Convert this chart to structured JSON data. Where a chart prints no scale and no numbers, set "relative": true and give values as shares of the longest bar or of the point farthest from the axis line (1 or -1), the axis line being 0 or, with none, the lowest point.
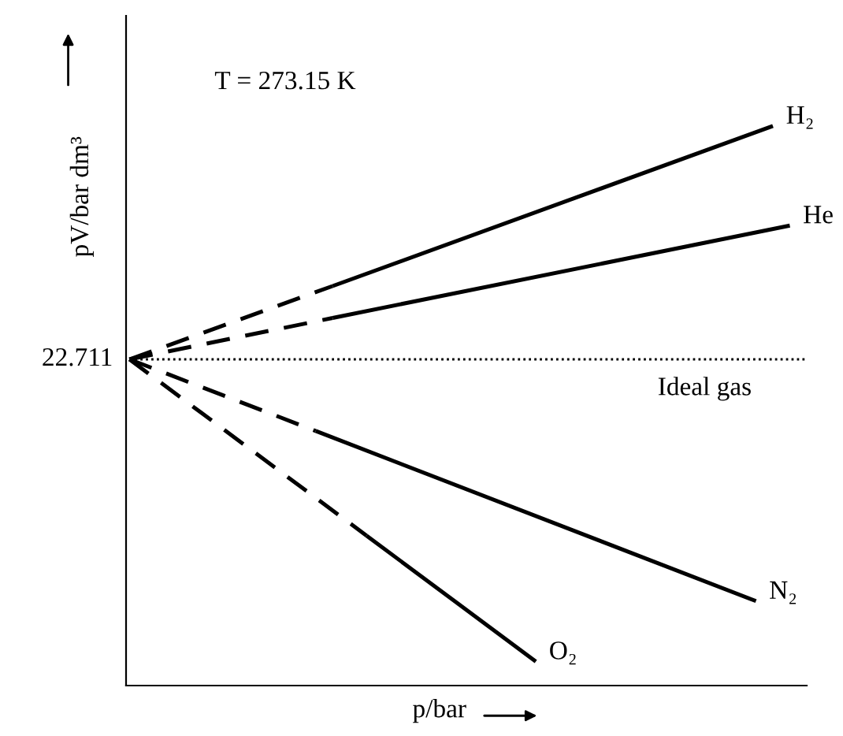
{
  "chart_data": {
    "type": "line",
    "relative": true,
    "xlabel": "p/bar",
    "ylabel": "pV/bar dm³",
    "annotations": [
      "T = 273.15 K",
      "22.711"
    ],
    "categories": [
      null,
      null,
      null,
      null,
      null,
      null,
      null,
      null,
      null,
      null,
      null,
      null,
      null,
      null,
      null,
      null,
      null,
      null,
      null,
      null,
      null,
      null,
      null,
      null,
      null,
      null,
      null,
      null,
      null,
      null,
      null,
      null,
      null,
      null,
      null,
      null,
      null,
      null,
      null,
      null,
      null
    ],
    "series": [
      {
        "name": "Ideal gas",
        "color": "#000000",
        "line_style": "dotted",
        "values": [
          0.583,
          null,
          null,
          null,
          null,
          null,
          null,
          null,
          null,
          null,
          null,
          null,
          null,
          null,
          null,
          null,
          null,
          null,
          null,
          null,
          null,
          null,
          null,
          null,
          null,
          null,
          null,
          null,
          null,
          null,
          null,
          null,
          null,
          null,
          null,
          null,
          null,
          null,
          null,
          null,
          0.583
        ]
      },
      {
        "color": "#000000",
        "line_style": "dashed",
        "values": [
          0.583,
          null,
          null,
          null,
          null,
          null,
          null,
          null,
          null,
          null,
          null,
          null,
          0.714,
          null,
          null,
          null,
          null,
          null,
          null,
          null,
          null,
          null,
          null,
          null,
          null,
          null,
          null,
          null,
          null,
          null,
          null,
          null,
          null,
          null,
          null,
          null,
          null,
          null,
          null,
          null,
          null
        ]
      },
      {
        "name": "H₂",
        "color": "#000000",
        "line_style": "solid",
        "values": [
          null,
          null,
          null,
          null,
          null,
          null,
          null,
          null,
          null,
          null,
          null,
          null,
          0.714,
          null,
          null,
          null,
          null,
          null,
          null,
          null,
          null,
          null,
          null,
          null,
          null,
          null,
          null,
          null,
          null,
          null,
          null,
          null,
          null,
          null,
          null,
          null,
          null,
          null,
          1.0,
          null,
          null
        ]
      },
      {
        "color": "#000000",
        "line_style": "dashed",
        "values": [
          0.583,
          null,
          null,
          null,
          null,
          null,
          null,
          null,
          null,
          null,
          null,
          null,
          0.657,
          null,
          null,
          null,
          null,
          null,
          null,
          null,
          null,
          null,
          null,
          null,
          null,
          null,
          null,
          null,
          null,
          null,
          null,
          null,
          null,
          null,
          null,
          null,
          null,
          null,
          null,
          null,
          null
        ]
      },
      {
        "name": "He",
        "color": "#000000",
        "line_style": "solid",
        "values": [
          null,
          null,
          null,
          null,
          null,
          null,
          null,
          null,
          null,
          null,
          null,
          null,
          0.657,
          null,
          null,
          null,
          null,
          null,
          null,
          null,
          null,
          null,
          null,
          null,
          null,
          null,
          null,
          null,
          null,
          null,
          null,
          null,
          null,
          null,
          null,
          null,
          null,
          null,
          null,
          0.822,
          null
        ]
      },
      {
        "color": "#000000",
        "line_style": "dashed",
        "values": [
          0.583,
          null,
          null,
          null,
          null,
          null,
          null,
          null,
          null,
          null,
          null,
          0.455,
          null,
          null,
          null,
          null,
          null,
          null,
          null,
          null,
          null,
          null,
          null,
          null,
          null,
          null,
          null,
          null,
          null,
          null,
          null,
          null,
          null,
          null,
          null,
          null,
          null,
          null,
          null,
          null,
          null
        ]
      },
      {
        "name": "N₂",
        "color": "#000000",
        "line_style": "solid",
        "values": [
          null,
          null,
          null,
          null,
          null,
          null,
          null,
          null,
          null,
          null,
          null,
          0.455,
          null,
          null,
          null,
          null,
          null,
          null,
          null,
          null,
          null,
          null,
          null,
          null,
          null,
          null,
          null,
          null,
          null,
          null,
          null,
          null,
          null,
          null,
          null,
          null,
          null,
          0.151,
          null,
          null,
          null
        ]
      },
      {
        "color": "#000000",
        "line_style": "dashed",
        "values": [
          0.583,
          null,
          null,
          null,
          null,
          null,
          null,
          null,
          null,
          null,
          null,
          null,
          null,
          null,
          0.268,
          null,
          null,
          null,
          null,
          null,
          null,
          null,
          null,
          null,
          null,
          null,
          null,
          null,
          null,
          null,
          null,
          null,
          null,
          null,
          null,
          null,
          null,
          null,
          null,
          null,
          null
        ]
      },
      {
        "name": "O₂",
        "color": "#000000",
        "line_style": "solid",
        "values": [
          null,
          null,
          null,
          null,
          null,
          null,
          null,
          null,
          null,
          null,
          null,
          null,
          null,
          null,
          0.268,
          null,
          null,
          null,
          null,
          null,
          null,
          null,
          null,
          null,
          0.043,
          null,
          null,
          null,
          null,
          null,
          null,
          null,
          null,
          null,
          null,
          null,
          null,
          null,
          null,
          null,
          null
        ]
      }
    ]
  }
}
